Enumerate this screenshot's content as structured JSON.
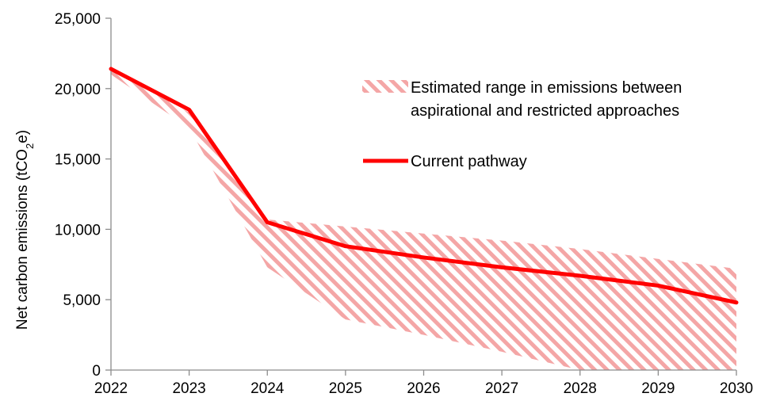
{
  "chart_data": {
    "type": "line",
    "title": "",
    "xlabel": "",
    "ylabel": {
      "prefix": "Net carbon emissions (tCO",
      "subscript": "2",
      "suffix": "e)"
    },
    "x": [
      2022,
      2023,
      2024,
      2025,
      2026,
      2027,
      2028,
      2029,
      2030
    ],
    "xlim": [
      2022,
      2030
    ],
    "ylim": [
      0,
      25000
    ],
    "yticks": [
      0,
      5000,
      10000,
      15000,
      20000,
      25000
    ],
    "ytick_labels": [
      "0",
      "5,000",
      "10,000",
      "15,000",
      "20,000",
      "25,000"
    ],
    "xtick_labels": [
      "2022",
      "2023",
      "2024",
      "2025",
      "2026",
      "2027",
      "2028",
      "2029",
      "2030"
    ],
    "grid": false,
    "legend_position": "upper-right",
    "range_band": {
      "name_lines": [
        "Estimated range in emissions between",
        "aspirational and restricted approaches"
      ],
      "upper": [
        21400,
        18300,
        10700,
        10200,
        9700,
        9200,
        8600,
        7900,
        7200
      ],
      "lower": [
        21000,
        17200,
        7300,
        3600,
        2500,
        1300,
        0,
        0,
        0
      ],
      "color": "#f4a6a6"
    },
    "series": [
      {
        "name": "Current pathway",
        "values": [
          21400,
          18500,
          10500,
          8800,
          8000,
          7300,
          6700,
          6000,
          4800
        ],
        "color": "#ff0000"
      }
    ]
  }
}
